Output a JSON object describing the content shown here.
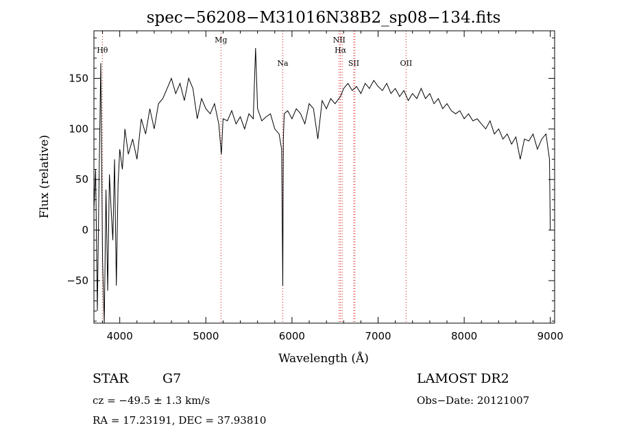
{
  "chart_data": {
    "type": "line",
    "title": "spec−56208−M31016N38B2_sp08−134.fits",
    "xlabel": "Wavelength (Å)",
    "ylabel": "Flux (relative)",
    "xlim": [
      3700,
      9050
    ],
    "ylim": [
      -92,
      197
    ],
    "x_ticks": [
      4000,
      5000,
      6000,
      7000,
      8000,
      9000
    ],
    "x_tick_labels": [
      "4000",
      "5000",
      "6000",
      "7000",
      "8000",
      "9000"
    ],
    "y_ticks": [
      -50,
      0,
      50,
      100,
      150
    ],
    "y_tick_labels": [
      "−50",
      "0",
      "50",
      "100",
      "150"
    ],
    "grid": false,
    "series": [
      {
        "x": [
          3700,
          3720,
          3740,
          3760,
          3780,
          3800,
          3820,
          3840,
          3860,
          3880,
          3900,
          3920,
          3940,
          3960,
          3980,
          4000,
          4030,
          4060,
          4100,
          4150,
          4200,
          4250,
          4300,
          4350,
          4400,
          4450,
          4500,
          4550,
          4600,
          4650,
          4700,
          4750,
          4800,
          4850,
          4900,
          4950,
          5000,
          5050,
          5100,
          5150,
          5180,
          5200,
          5250,
          5300,
          5350,
          5400,
          5450,
          5500,
          5550,
          5577,
          5600,
          5650,
          5700,
          5750,
          5800,
          5850,
          5880,
          5893,
          5900,
          5910,
          5950,
          6000,
          6050,
          6100,
          6150,
          6200,
          6250,
          6300,
          6350,
          6400,
          6450,
          6500,
          6563,
          6600,
          6650,
          6700,
          6750,
          6800,
          6850,
          6900,
          6950,
          7000,
          7050,
          7100,
          7150,
          7200,
          7250,
          7300,
          7350,
          7400,
          7450,
          7500,
          7550,
          7600,
          7650,
          7700,
          7750,
          7800,
          7850,
          7900,
          7950,
          8000,
          8050,
          8100,
          8150,
          8200,
          8250,
          8300,
          8350,
          8400,
          8450,
          8500,
          8550,
          8600,
          8650,
          8700,
          8750,
          8800,
          8850,
          8900,
          8950,
          8990,
          9000
        ],
        "y": [
          20,
          60,
          -80,
          50,
          165,
          -30,
          -92,
          40,
          -60,
          55,
          20,
          -10,
          70,
          -55,
          45,
          80,
          60,
          100,
          75,
          90,
          70,
          110,
          95,
          120,
          100,
          125,
          130,
          140,
          150,
          135,
          145,
          128,
          150,
          140,
          110,
          130,
          120,
          115,
          125,
          105,
          75,
          110,
          108,
          118,
          105,
          112,
          100,
          115,
          110,
          180,
          120,
          108,
          112,
          115,
          100,
          95,
          80,
          -55,
          90,
          115,
          118,
          110,
          120,
          115,
          105,
          125,
          120,
          90,
          128,
          120,
          130,
          125,
          132,
          140,
          145,
          138,
          142,
          135,
          145,
          140,
          148,
          142,
          138,
          145,
          135,
          140,
          132,
          138,
          128,
          135,
          130,
          140,
          130,
          135,
          125,
          130,
          120,
          125,
          118,
          115,
          118,
          110,
          115,
          108,
          110,
          105,
          100,
          108,
          95,
          100,
          90,
          95,
          85,
          92,
          70,
          90,
          88,
          95,
          80,
          90,
          95,
          70,
          0
        ]
      }
    ],
    "line_markers": [
      {
        "label": "Hθ",
        "x": 3798
      },
      {
        "label": "Mg",
        "x": 5175
      },
      {
        "label": "Na",
        "x": 5893
      },
      {
        "label": "NII",
        "x": 6548
      },
      {
        "label": "Hα",
        "x": 6563
      },
      {
        "label": "NII",
        "x": 6583
      },
      {
        "label": "SII",
        "x": 6717
      },
      {
        "label": "SII",
        "x": 6731
      },
      {
        "label": "OII",
        "x": 7325
      }
    ],
    "marker_color": "#d00000"
  },
  "info": {
    "object_type": "STAR",
    "subclass": "G7",
    "redshift": "cz = −49.5 ± 1.3 km/s",
    "coordinates": "RA =  17.23191, DEC =  37.93810",
    "survey": "LAMOST DR2",
    "obs_date": "Obs−Date: 20121007"
  }
}
